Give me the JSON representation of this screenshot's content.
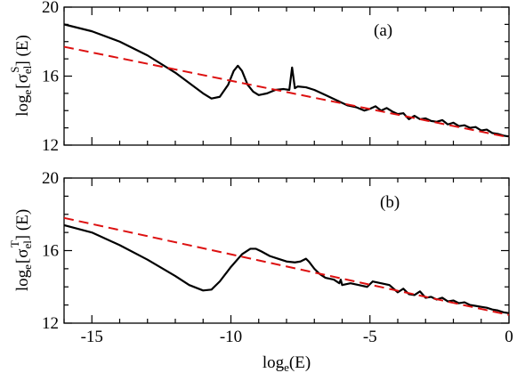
{
  "chart_data": [
    {
      "type": "line",
      "panel_label": "(a)",
      "ylabel": {
        "prefix": "log",
        "sub": "e",
        "bracket_open": "[σ",
        "sub2": "el",
        "sup": "S",
        "bracket_close": "] (E)"
      },
      "xlim": [
        -16,
        0
      ],
      "ylim": [
        12,
        20
      ],
      "xticks": [
        -15,
        -10,
        -5,
        0
      ],
      "yticks": [
        12,
        16,
        20
      ],
      "series": [
        {
          "style": "solid",
          "color": "#000000",
          "x": [
            -16,
            -15,
            -14,
            -13,
            -12,
            -11.5,
            -11,
            -10.7,
            -10.4,
            -10.1,
            -9.9,
            -9.75,
            -9.6,
            -9.4,
            -9.2,
            -9,
            -8.7,
            -8.4,
            -8.1,
            -7.9,
            -7.8,
            -7.7,
            -7.6,
            -7.3,
            -7,
            -6.6,
            -6.2,
            -5.8,
            -5.5,
            -5.2,
            -5,
            -4.8,
            -4.6,
            -4.4,
            -4.2,
            -4,
            -3.8,
            -3.6,
            -3.4,
            -3.2,
            -3,
            -2.8,
            -2.6,
            -2.4,
            -2.2,
            -2,
            -1.8,
            -1.6,
            -1.4,
            -1.2,
            -1,
            -0.8,
            -0.6,
            -0.4,
            -0.2,
            0
          ],
          "y": [
            19.0,
            18.6,
            18.0,
            17.2,
            16.2,
            15.6,
            15.0,
            14.7,
            14.8,
            15.5,
            16.3,
            16.6,
            16.3,
            15.5,
            15.1,
            14.9,
            15.0,
            15.2,
            15.25,
            15.2,
            16.5,
            15.3,
            15.4,
            15.35,
            15.2,
            14.9,
            14.6,
            14.3,
            14.2,
            14.0,
            14.1,
            14.25,
            14.0,
            14.15,
            13.95,
            13.8,
            13.85,
            13.5,
            13.7,
            13.5,
            13.55,
            13.4,
            13.35,
            13.45,
            13.2,
            13.3,
            13.1,
            13.15,
            13.0,
            13.05,
            12.85,
            12.9,
            12.7,
            12.65,
            12.55,
            12.5
          ]
        },
        {
          "style": "dashed",
          "color": "#dd1111",
          "x": [
            -16,
            0
          ],
          "y": [
            17.7,
            12.45
          ]
        }
      ]
    },
    {
      "type": "line",
      "panel_label": "(b)",
      "ylabel": {
        "prefix": "log",
        "sub": "e",
        "bracket_open": "[σ",
        "sub2": "el",
        "sup": "T",
        "bracket_close": "] (E)"
      },
      "xlabel": {
        "prefix": "log",
        "sub": "e",
        "suffix": "(E)"
      },
      "xlim": [
        -16,
        0
      ],
      "ylim": [
        12,
        20
      ],
      "xticks": [
        -15,
        -10,
        -5,
        0
      ],
      "xtick_labels": [
        "-15",
        "-10",
        "-5",
        "0"
      ],
      "yticks": [
        12,
        16,
        20
      ],
      "series": [
        {
          "style": "solid",
          "color": "#000000",
          "x": [
            -16,
            -15,
            -14,
            -13,
            -12,
            -11.5,
            -11,
            -10.7,
            -10.4,
            -10,
            -9.6,
            -9.3,
            -9.1,
            -8.9,
            -8.6,
            -8.3,
            -8,
            -7.7,
            -7.5,
            -7.3,
            -7.2,
            -7,
            -6.8,
            -6.6,
            -6.3,
            -6.1,
            -6.05,
            -6,
            -5.7,
            -5.4,
            -5.1,
            -4.9,
            -4.6,
            -4.3,
            -4,
            -3.8,
            -3.6,
            -3.4,
            -3.2,
            -3,
            -2.8,
            -2.6,
            -2.4,
            -2.2,
            -2,
            -1.8,
            -1.6,
            -1.4,
            -1.2,
            -1,
            -0.8,
            -0.6,
            -0.4,
            -0.2,
            0
          ],
          "y": [
            17.4,
            17.0,
            16.3,
            15.5,
            14.6,
            14.1,
            13.8,
            13.85,
            14.3,
            15.1,
            15.8,
            16.1,
            16.1,
            15.95,
            15.7,
            15.55,
            15.4,
            15.35,
            15.4,
            15.55,
            15.4,
            15.0,
            14.7,
            14.5,
            14.4,
            14.2,
            14.4,
            14.1,
            14.2,
            14.1,
            14.0,
            14.3,
            14.2,
            14.1,
            13.7,
            13.9,
            13.6,
            13.55,
            13.75,
            13.4,
            13.45,
            13.3,
            13.4,
            13.2,
            13.25,
            13.1,
            13.15,
            13.0,
            12.95,
            12.9,
            12.85,
            12.75,
            12.7,
            12.6,
            12.55
          ]
        },
        {
          "style": "dashed",
          "color": "#dd1111",
          "x": [
            -16,
            0
          ],
          "y": [
            17.8,
            12.45
          ]
        }
      ]
    }
  ]
}
